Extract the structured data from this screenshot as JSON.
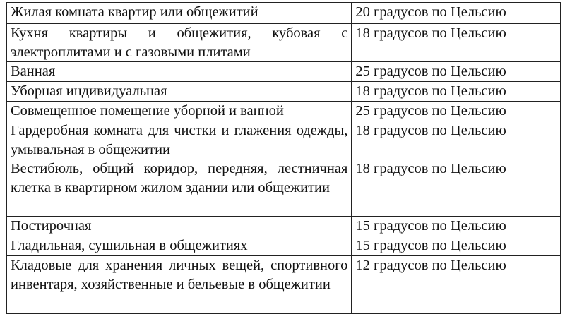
{
  "rows": [
    {
      "room": "Жилая комната квартир или общежитий",
      "temperature": "20 градусов по Цельсию"
    },
    {
      "room": "Кухня квартиры и общежития, кубовая с электроплитами и с газовыми плитами",
      "temperature": "18 градусов по Цельсию"
    },
    {
      "room": "Ванная",
      "temperature": "25 градусов по Цельсию"
    },
    {
      "room": "Уборная индивидуальная",
      "temperature": "18 градусов по Цельсию"
    },
    {
      "room": "Совмещенное помещение уборной и ванной",
      "temperature": "25 градусов по Цельсию"
    },
    {
      "room": "Гардеробная комната для чистки и глажения одежды, умывальная в общежитии",
      "temperature": "18 градусов по Цельсию"
    },
    {
      "room": "Вестибюль, общий коридор, передняя, лестничная клетка в квартирном жилом здании или общежитии",
      "temperature": "18 градусов по Цельсию"
    },
    {
      "room": "Постирочная",
      "temperature": "15 градусов по Цельсию"
    },
    {
      "room": "Гладильная, сушильная в общежитиях",
      "temperature": "15 градусов по Цельсию"
    },
    {
      "room": "Кладовые для хранения личных вещей, спортивного инвентаря, хозяйственные и бельевые в общежитии",
      "temperature": "12 градусов по Цельсию"
    }
  ]
}
